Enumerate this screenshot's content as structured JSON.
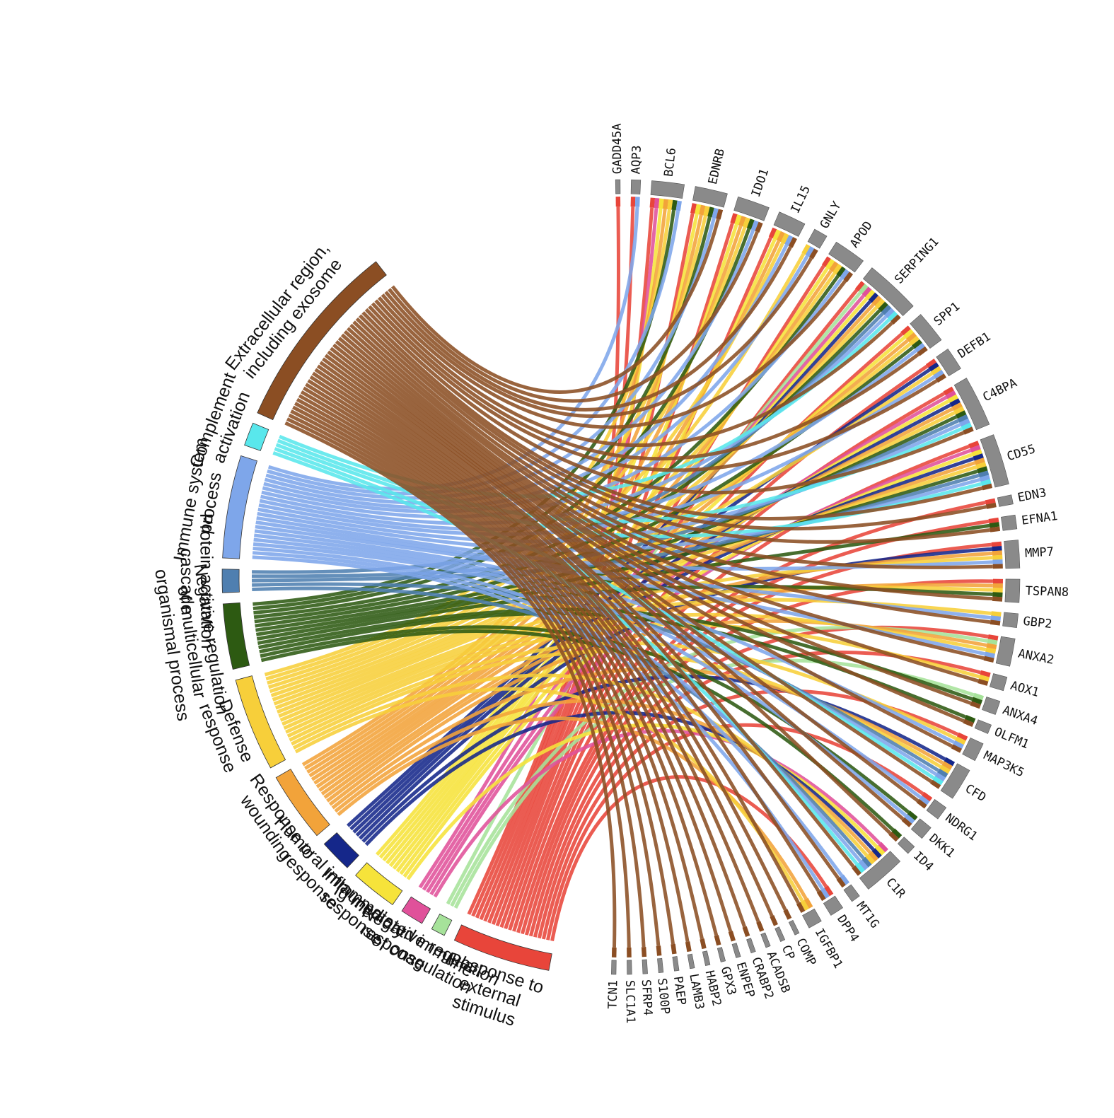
{
  "terms": [
    {
      "key": "ext_stim",
      "label": [
        "Response to",
        "external",
        "stimulus"
      ],
      "color": "#e8453a"
    },
    {
      "key": "neg_coag",
      "label": [
        "Negative regulation",
        "of coagulation"
      ],
      "color": "#a6e29a"
    },
    {
      "key": "ig_med",
      "label": [
        "Ig mediated immune",
        "response"
      ],
      "color": "#e0519a"
    },
    {
      "key": "inflam",
      "label": [
        "Inflammatory",
        "response"
      ],
      "color": "#f6e33a"
    },
    {
      "key": "humoral",
      "label": [
        "Humoral immune",
        "response"
      ],
      "color": "#15278a"
    },
    {
      "key": "wound",
      "label": [
        "Response to",
        "wounding"
      ],
      "color": "#f2a33a"
    },
    {
      "key": "defense",
      "label": [
        "Defense",
        "response"
      ],
      "color": "#f7cf3a"
    },
    {
      "key": "neg_multi",
      "label": [
        "Negative regulation",
        "of multicellular",
        "organismal process"
      ],
      "color": "#2d5a12"
    },
    {
      "key": "prot_act",
      "label": [
        "Protein activation",
        "cascade"
      ],
      "color": "#4f7fb0"
    },
    {
      "key": "immune_sys",
      "label": [
        "Immune system",
        "process"
      ],
      "color": "#7ea6ea"
    },
    {
      "key": "complement",
      "label": [
        "Complement",
        "activation"
      ],
      "color": "#59e7ec"
    },
    {
      "key": "extracell",
      "label": [
        "Extracellular region,",
        "including exosome"
      ],
      "color": "#8b4e23"
    }
  ],
  "genes": [
    {
      "name": "GADD45A",
      "terms": [
        "ext_stim"
      ]
    },
    {
      "name": "AQP3",
      "terms": [
        "ext_stim",
        "immune_sys"
      ]
    },
    {
      "name": "BCL6",
      "terms": [
        "ext_stim",
        "ig_med",
        "inflam",
        "wound",
        "defense",
        "neg_multi",
        "immune_sys"
      ]
    },
    {
      "name": "EDNRB",
      "terms": [
        "ext_stim",
        "inflam",
        "wound",
        "defense",
        "neg_multi",
        "immune_sys",
        "extracell"
      ]
    },
    {
      "name": "IDO1",
      "terms": [
        "ext_stim",
        "inflam",
        "wound",
        "defense",
        "neg_multi",
        "immune_sys",
        "extracell"
      ]
    },
    {
      "name": "IL15",
      "terms": [
        "ext_stim",
        "inflam",
        "wound",
        "defense",
        "immune_sys",
        "extracell"
      ]
    },
    {
      "name": "GNLY",
      "terms": [
        "defense",
        "immune_sys",
        "extracell"
      ]
    },
    {
      "name": "APOD",
      "terms": [
        "ext_stim",
        "inflam",
        "wound",
        "defense",
        "neg_multi",
        "immune_sys",
        "extracell"
      ]
    },
    {
      "name": "SERPING1",
      "terms": [
        "ext_stim",
        "neg_coag",
        "ig_med",
        "inflam",
        "humoral",
        "wound",
        "defense",
        "neg_multi",
        "prot_act",
        "immune_sys",
        "complement",
        "extracell"
      ]
    },
    {
      "name": "SPP1",
      "terms": [
        "ext_stim",
        "inflam",
        "wound",
        "defense",
        "neg_multi",
        "immune_sys",
        "extracell"
      ]
    },
    {
      "name": "DEFB1",
      "terms": [
        "ext_stim",
        "humoral",
        "defense",
        "immune_sys",
        "extracell"
      ]
    },
    {
      "name": "C4BPA",
      "terms": [
        "ext_stim",
        "ig_med",
        "inflam",
        "humoral",
        "wound",
        "defense",
        "neg_multi",
        "prot_act",
        "immune_sys",
        "complement",
        "extracell"
      ]
    },
    {
      "name": "CD55",
      "terms": [
        "ext_stim",
        "ig_med",
        "inflam",
        "humoral",
        "wound",
        "defense",
        "neg_multi",
        "prot_act",
        "immune_sys",
        "complement",
        "extracell"
      ]
    },
    {
      "name": "EDN3",
      "terms": [
        "ext_stim",
        "extracell"
      ]
    },
    {
      "name": "EFNA1",
      "terms": [
        "ext_stim",
        "neg_multi",
        "extracell"
      ]
    },
    {
      "name": "MMP7",
      "terms": [
        "ext_stim",
        "humoral",
        "wound",
        "defense",
        "immune_sys",
        "extracell"
      ]
    },
    {
      "name": "TSPAN8",
      "terms": [
        "ext_stim",
        "wound",
        "defense",
        "neg_multi",
        "extracell"
      ]
    },
    {
      "name": "GBP2",
      "terms": [
        "defense",
        "immune_sys",
        "extracell"
      ]
    },
    {
      "name": "ANXA2",
      "terms": [
        "ext_stim",
        "neg_coag",
        "wound",
        "defense",
        "immune_sys",
        "extracell"
      ]
    },
    {
      "name": "AOX1",
      "terms": [
        "ext_stim",
        "defense",
        "extracell"
      ]
    },
    {
      "name": "ANXA4",
      "terms": [
        "neg_coag",
        "neg_multi",
        "extracell"
      ]
    },
    {
      "name": "OLFM1",
      "terms": [
        "neg_multi",
        "extracell"
      ]
    },
    {
      "name": "MAP3K5",
      "terms": [
        "ext_stim",
        "defense",
        "immune_sys",
        "extracell"
      ]
    },
    {
      "name": "CFD",
      "terms": [
        "humoral",
        "wound",
        "defense",
        "prot_act",
        "immune_sys",
        "complement",
        "extracell"
      ]
    },
    {
      "name": "NDRG1",
      "terms": [
        "ext_stim",
        "immune_sys",
        "extracell"
      ]
    },
    {
      "name": "DKK1",
      "terms": [
        "neg_multi",
        "immune_sys",
        "extracell"
      ]
    },
    {
      "name": "ID4",
      "terms": [
        "neg_multi",
        "extracell"
      ]
    },
    {
      "name": "C1R",
      "terms": [
        "ig_med",
        "inflam",
        "humoral",
        "wound",
        "defense",
        "prot_act",
        "immune_sys",
        "complement",
        "extracell"
      ]
    },
    {
      "name": "MT1G",
      "terms": [
        "immune_sys",
        "extracell"
      ]
    },
    {
      "name": "DPP4",
      "terms": [
        "ext_stim",
        "immune_sys",
        "extracell"
      ]
    },
    {
      "name": "IGFBP1",
      "terms": [
        "wound",
        "defense",
        "extracell"
      ]
    },
    {
      "name": "COMP",
      "terms": [
        "extracell"
      ]
    },
    {
      "name": "CP",
      "terms": [
        "extracell"
      ]
    },
    {
      "name": "ACADSB",
      "terms": [
        "extracell"
      ]
    },
    {
      "name": "CRABP2",
      "terms": [
        "extracell"
      ]
    },
    {
      "name": "ENPEP",
      "terms": [
        "extracell"
      ]
    },
    {
      "name": "GPX3",
      "terms": [
        "extracell"
      ]
    },
    {
      "name": "HABP2",
      "terms": [
        "extracell"
      ]
    },
    {
      "name": "LAMB3",
      "terms": [
        "extracell"
      ]
    },
    {
      "name": "PAEP",
      "terms": [
        "extracell"
      ]
    },
    {
      "name": "S100P",
      "terms": [
        "extracell"
      ]
    },
    {
      "name": "SFRP4",
      "terms": [
        "extracell"
      ]
    },
    {
      "name": "SLC1A1",
      "terms": [
        "extracell"
      ]
    },
    {
      "name": "TCN1",
      "terms": [
        "extracell"
      ]
    }
  ]
}
